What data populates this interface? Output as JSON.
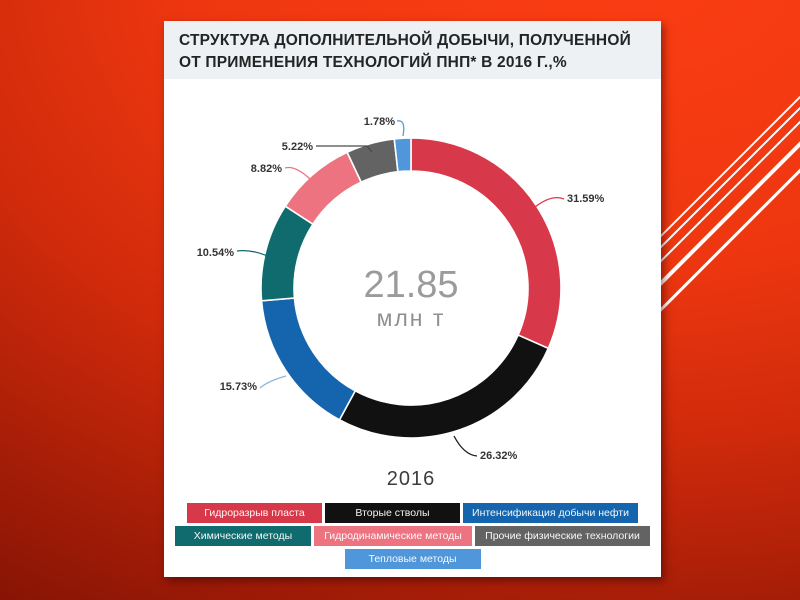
{
  "slide": {
    "title_line1": "СТРУКТУРА ДОПОЛНИТЕЛЬНОЙ ДОБЫЧИ, ПОЛУЧЕННОЙ",
    "title_line2": "ОТ ПРИМЕНЕНИЯ ТЕХНОЛОГИЙ ПНП* В 2016 Г.,%"
  },
  "chart_data": {
    "type": "pie",
    "variant": "donut",
    "title": "Структура дополнительной добычи, полученной от применения технологий ПНП* в 2016 г., %",
    "categories": [
      "Гидроразрыв пласта",
      "Вторые стволы",
      "Интенсификация добычи нефти",
      "Химические методы",
      "Гидродинамические методы",
      "Прочие физические технологии",
      "Тепловые методы"
    ],
    "values": [
      31.59,
      26.32,
      15.73,
      10.54,
      8.82,
      5.22,
      1.78
    ],
    "labels": [
      "31.59%",
      "26.32%",
      "15.73%",
      "10.54%",
      "8.82%",
      "5.22%",
      "1.78%"
    ],
    "colors": [
      "#d8394a",
      "#111111",
      "#1565ae",
      "#106b6e",
      "#ee7380",
      "#636363",
      "#4f96db"
    ],
    "leader_colors": [
      "#d8394a",
      "#1a1a1a",
      "#8ab7d8",
      "#12696c",
      "#ee7380",
      "#4a4a4a",
      "#5b9bd5"
    ],
    "start_angle_deg": 0,
    "direction": "clockwise",
    "center_value": "21.85",
    "center_unit": "млн т",
    "axis_label": "2016",
    "legend_position": "bottom"
  }
}
